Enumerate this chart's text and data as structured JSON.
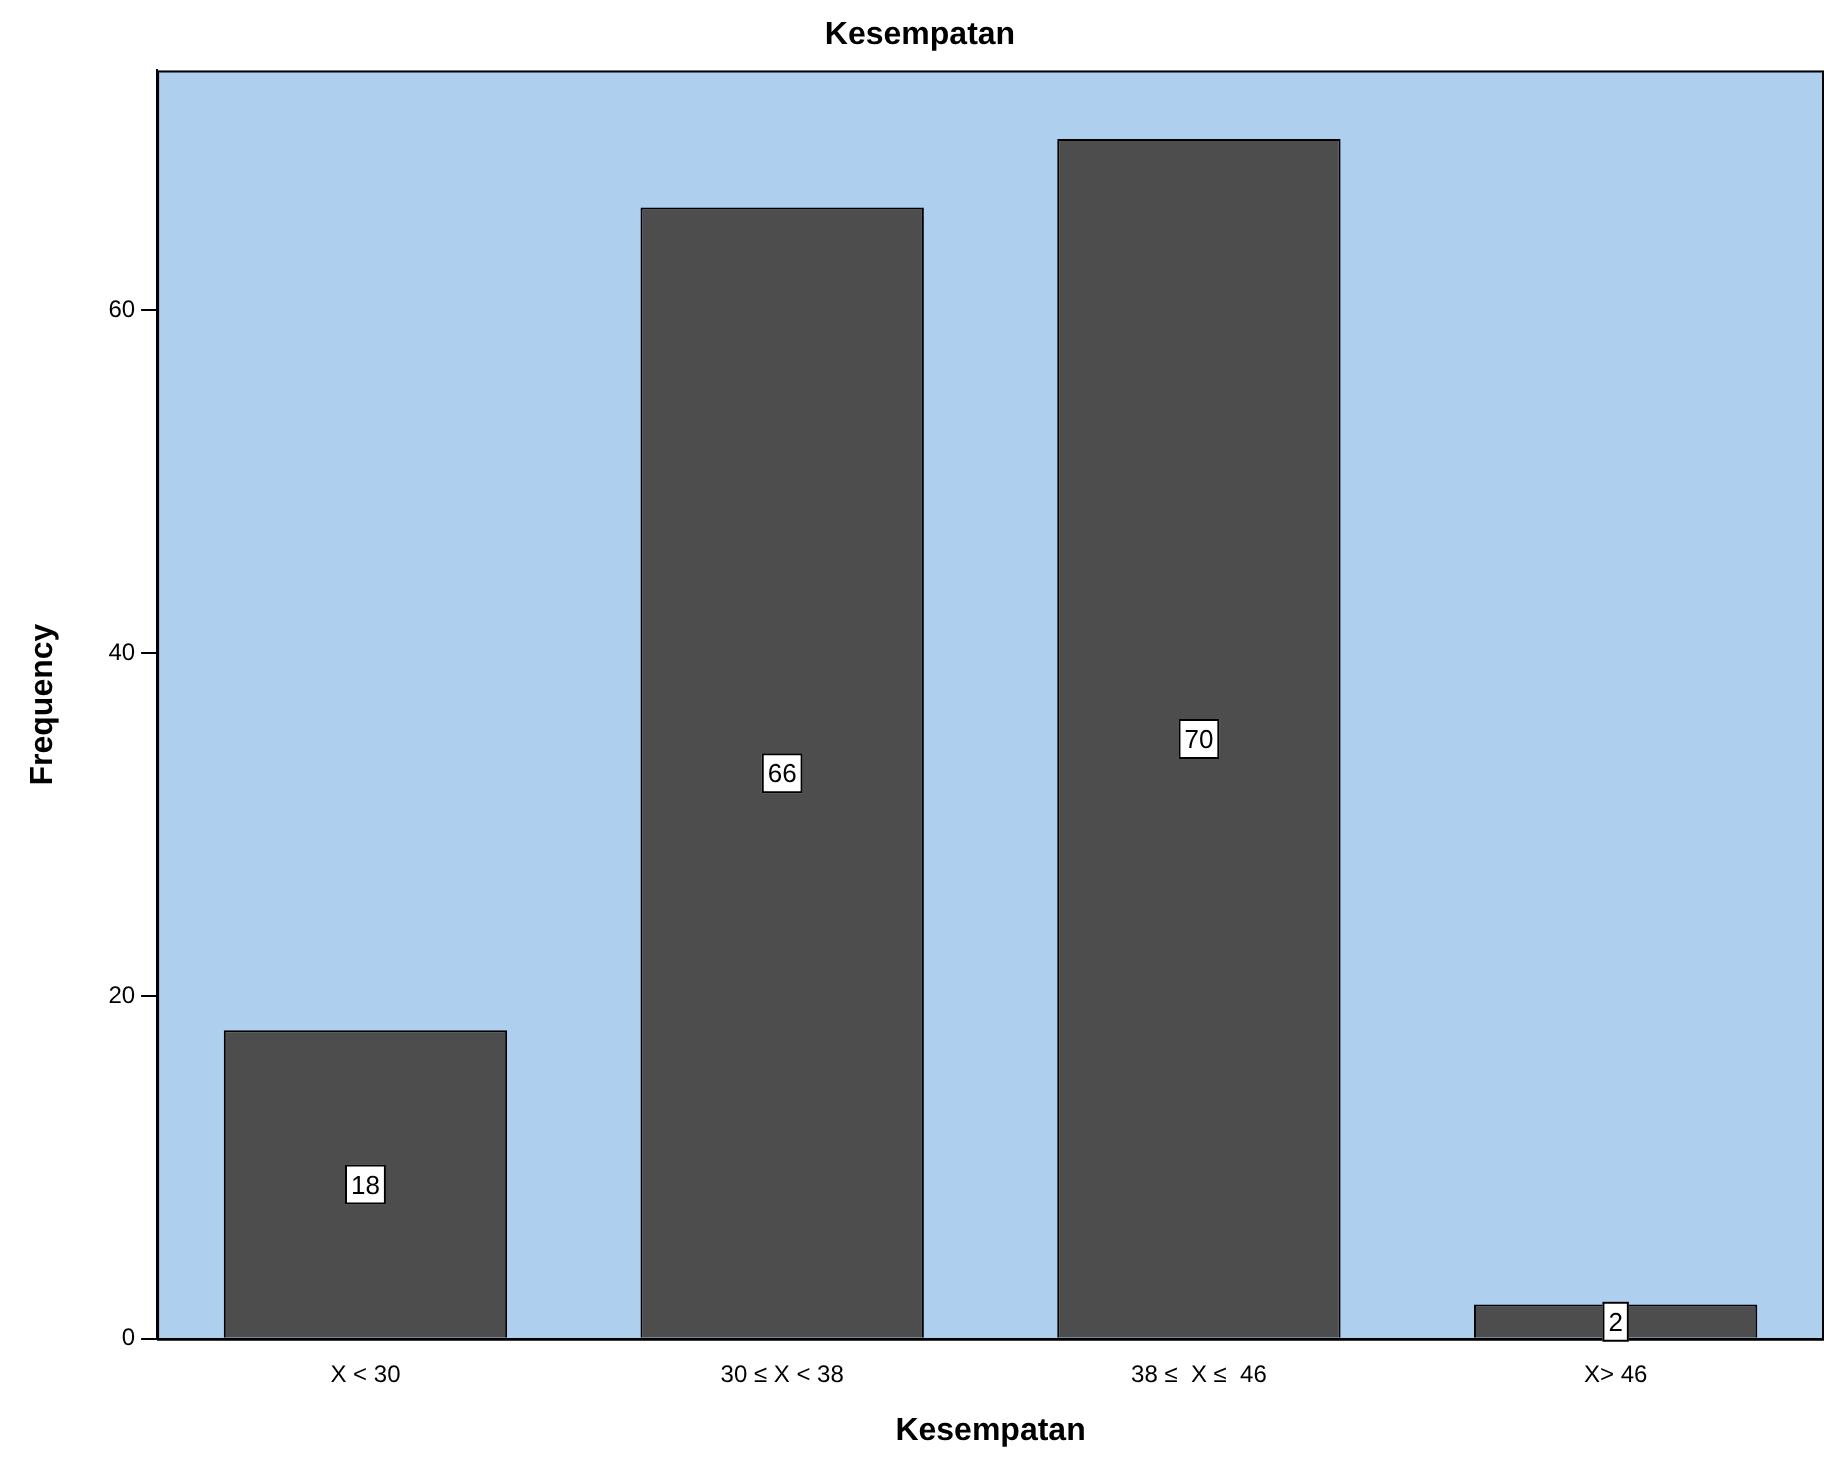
{
  "chart_data": {
    "type": "bar",
    "title": "Kesempatan",
    "xlabel": "Kesempatan",
    "ylabel": "Frequency",
    "categories": [
      "X < 30",
      "30 ≤ X < 38",
      "38 ≤  X ≤  46",
      "X> 46"
    ],
    "values": [
      18,
      66,
      70,
      2
    ],
    "color": "#4d4d4d",
    "ylim": [
      0,
      74
    ],
    "yticks": [
      0,
      20,
      40,
      60
    ],
    "grid": false,
    "legend": false,
    "data_labels": true
  }
}
